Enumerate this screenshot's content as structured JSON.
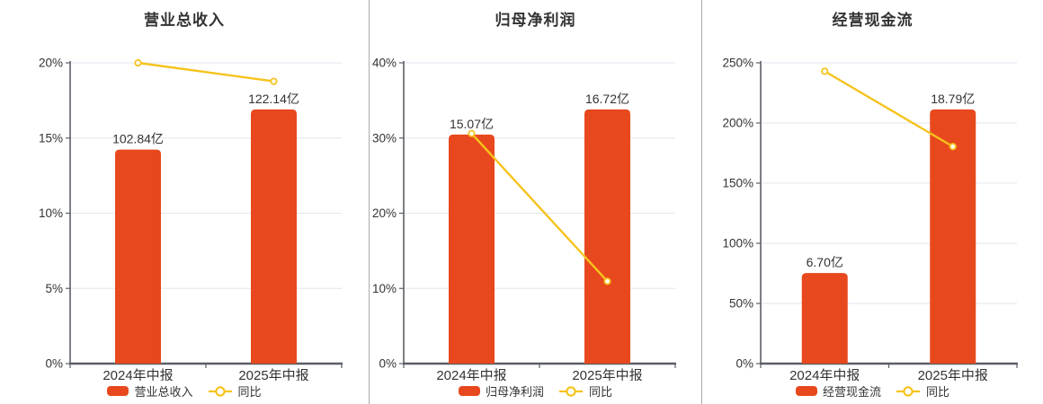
{
  "style": {
    "background": "#FFFFFF",
    "bar_color": "#E8481D",
    "line_color": "#F6C31D",
    "grid_color": "#E2E6EE",
    "axis_color": "#5B5F66",
    "text_color": "#333333",
    "divider_color": "#ABABAB",
    "marker_fill": "#FFFFFF"
  },
  "chart_data": [
    {
      "type": "bar+line",
      "title": "营业总收入",
      "categories": [
        "2024年中报",
        "2025年中报"
      ],
      "bar_series": {
        "name": "营业总收入",
        "unit": "亿",
        "values": [
          102.84,
          122.14
        ],
        "labels": [
          "102.84亿",
          "122.14亿"
        ]
      },
      "line_series": {
        "name": "同比",
        "unit": "%",
        "values": [
          20.0,
          18.77
        ]
      },
      "y_axis": {
        "min": 0,
        "max": 20,
        "step": 5,
        "tick_labels": [
          "0%",
          "5%",
          "10%",
          "15%",
          "20%"
        ]
      },
      "legend": [
        "营业总收入",
        "同比"
      ],
      "grid": true,
      "legend_position": "bottom"
    },
    {
      "type": "bar+line",
      "title": "归母净利润",
      "categories": [
        "2024年中报",
        "2025年中报"
      ],
      "bar_series": {
        "name": "归母净利润",
        "unit": "亿",
        "values": [
          15.07,
          16.72
        ],
        "labels": [
          "15.07亿",
          "16.72亿"
        ]
      },
      "line_series": {
        "name": "同比",
        "unit": "%",
        "values": [
          30.6,
          10.95
        ]
      },
      "y_axis": {
        "min": 0,
        "max": 40,
        "step": 10,
        "tick_labels": [
          "0%",
          "10%",
          "20%",
          "30%",
          "40%"
        ]
      },
      "legend": [
        "归母净利润",
        "同比"
      ],
      "grid": true,
      "legend_position": "bottom"
    },
    {
      "type": "bar+line",
      "title": "经营现金流",
      "categories": [
        "2024年中报",
        "2025年中报"
      ],
      "bar_series": {
        "name": "经营现金流",
        "unit": "亿",
        "values": [
          6.7,
          18.79
        ],
        "labels": [
          "6.70亿",
          "18.79亿"
        ]
      },
      "line_series": {
        "name": "同比",
        "unit": "%",
        "values": [
          243.0,
          180.4
        ]
      },
      "y_axis": {
        "min": 0,
        "max": 250,
        "step": 50,
        "tick_labels": [
          "0%",
          "50%",
          "100%",
          "150%",
          "200%",
          "250%"
        ]
      },
      "legend": [
        "经营现金流",
        "同比"
      ],
      "grid": true,
      "legend_position": "bottom"
    }
  ]
}
